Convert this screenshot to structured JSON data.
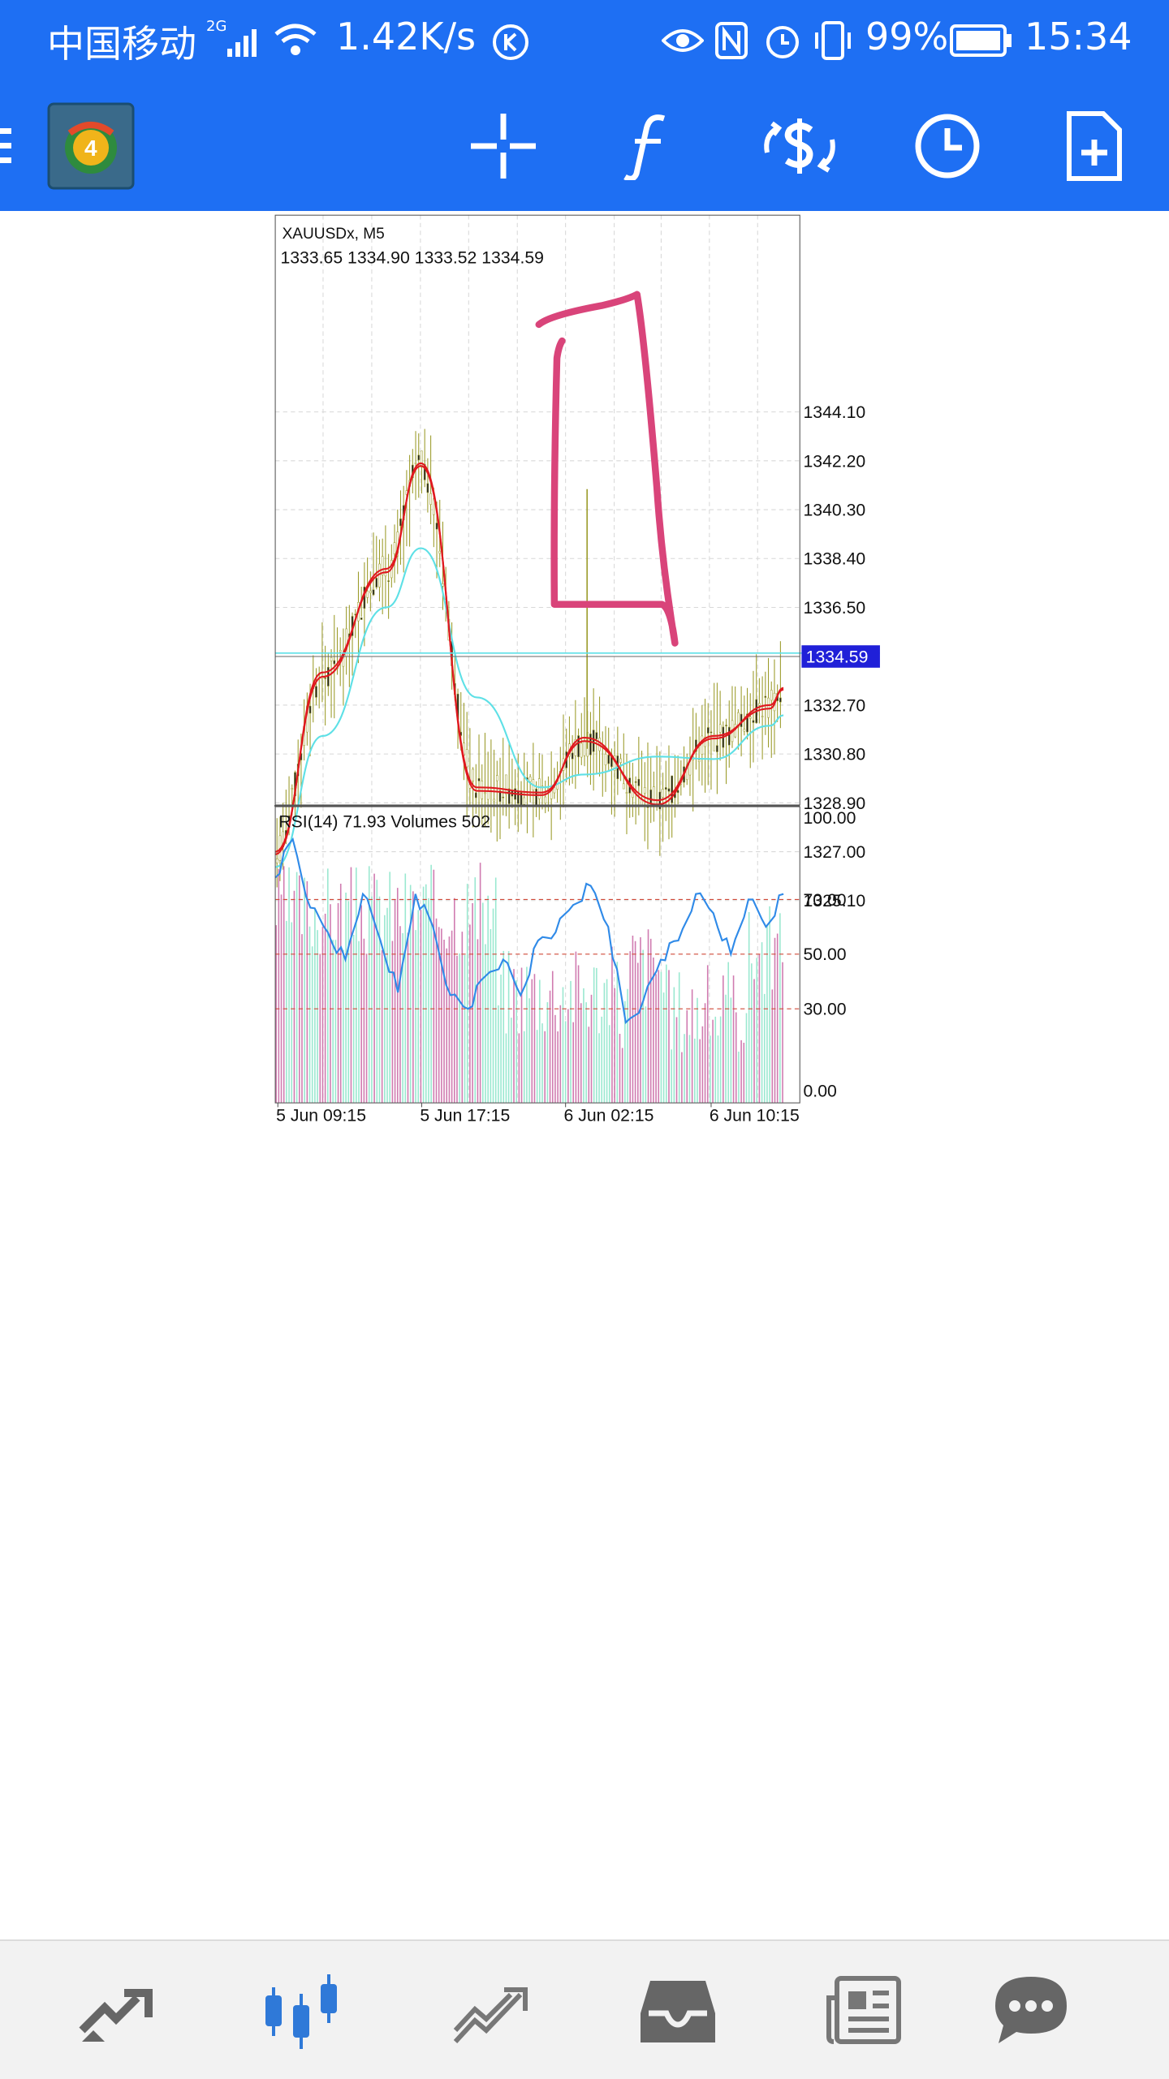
{
  "status_bar": {
    "carrier": "中国移动",
    "network": "2G",
    "speed": "1.42K/s",
    "battery": "99%",
    "time": "15:34"
  },
  "toolbar": {
    "icons": [
      "menu-icon",
      "mt4-logo",
      "crosshair-icon",
      "indicators-icon",
      "trade-icon",
      "timeframe-icon",
      "new-order-icon"
    ]
  },
  "chart": {
    "symbol": "XAUUSDx, M5",
    "ohlc": "1333.65 1334.90 1333.52 1334.59",
    "current_price": "1334.59",
    "price_ticks": [
      "1344.10",
      "1342.20",
      "1340.30",
      "1338.40",
      "1336.50",
      "1332.70",
      "1330.80",
      "1328.90",
      "1327.00",
      "1325.10"
    ],
    "sub_label": "RSI(14) 71.93 Volumes 502",
    "rsi_ticks": [
      "100.00",
      "70.00",
      "50.00",
      "30.00",
      "0.00"
    ],
    "time_labels": [
      "5 Jun 09:15",
      "5 Jun 17:15",
      "6 Jun 02:15",
      "6 Jun 10:15"
    ],
    "colors": {
      "candles": "#9b9b2a",
      "ma_fast": "#e0191f",
      "ma_slow": "#5ee0e6",
      "rsi": "#2f8ae8",
      "level": "#d04a3a",
      "annotation": "#d9447a",
      "price_tag": "#2020d8"
    }
  },
  "chart_data": {
    "type": "line",
    "ylim": [
      1323.5,
      1345.5
    ],
    "x": [
      "5 Jun 09:15",
      "5 Jun 12:00",
      "5 Jun 14:00",
      "5 Jun 17:15",
      "5 Jun 20:00",
      "5 Jun 23:00",
      "6 Jun 02:15",
      "6 Jun 05:00",
      "6 Jun 07:30",
      "6 Jun 10:15",
      "6 Jun 11:00"
    ],
    "series": [
      {
        "values": [
          1327.0,
          1333.8,
          1338.0,
          1342.0,
          1329.5,
          1329.3,
          1331.3,
          1329.0,
          1331.4,
          1332.7,
          1333.3
        ]
      },
      {
        "values": [
          1326.4,
          1331.5,
          1336.5,
          1338.8,
          1333.0,
          1329.5,
          1330.0,
          1330.7,
          1330.6,
          1331.9,
          1332.3
        ]
      }
    ],
    "rsi": {
      "ylim": [
        0,
        100
      ],
      "levels": [
        30,
        50,
        70
      ],
      "values": [
        78,
        92,
        67,
        58,
        48,
        72,
        55,
        36,
        72,
        60,
        35,
        30,
        42,
        48,
        35,
        55,
        58,
        68,
        75,
        60,
        25,
        33,
        48,
        55,
        72,
        65,
        50,
        70,
        60,
        72
      ]
    }
  },
  "bottom_nav": {
    "items": [
      "quotes-icon",
      "chart-icon",
      "trade-icon",
      "history-icon",
      "news-icon",
      "chat-icon"
    ]
  }
}
